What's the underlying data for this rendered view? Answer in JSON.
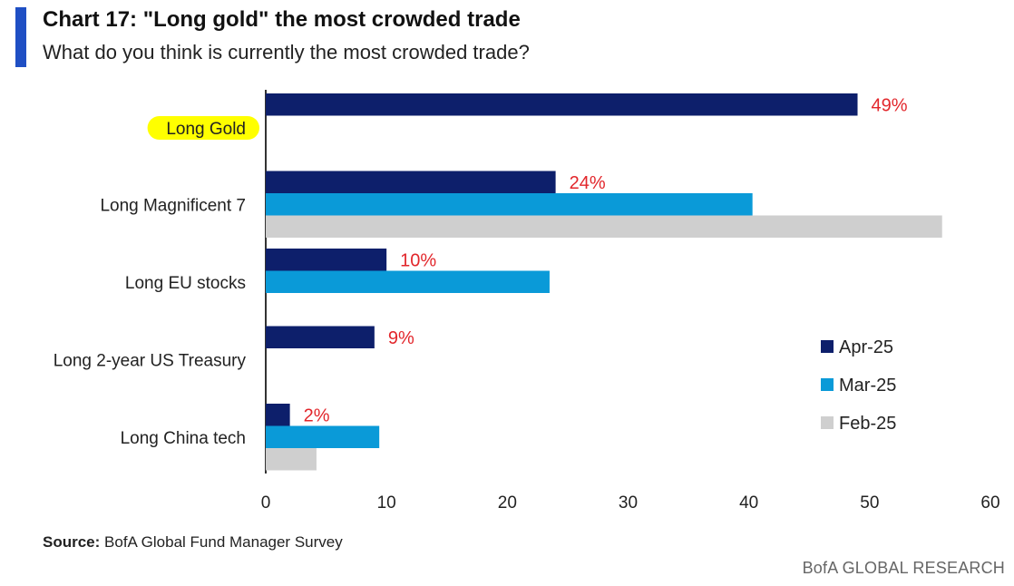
{
  "header": {
    "title": "Chart 17: \"Long gold\" the most crowded trade",
    "subtitle": "What do you think is currently the most crowded trade?",
    "accent_color": "#1f4fc4"
  },
  "chart_data": {
    "type": "bar",
    "orientation": "horizontal",
    "categories": [
      "Long Gold",
      "Long Magnificent 7",
      "Long EU stocks",
      "Long 2-year US Treasury",
      "Long China tech"
    ],
    "highlighted_category": "Long Gold",
    "highlight_color": "#ffff00",
    "series": [
      {
        "name": "Apr-25",
        "color": "#0d1f6b",
        "values": [
          49,
          24,
          10,
          9,
          2
        ]
      },
      {
        "name": "Mar-25",
        "color": "#0a9ad8",
        "values": [
          null,
          40.3,
          23.5,
          null,
          9.4
        ]
      },
      {
        "name": "Feb-25",
        "color": "#cfcfcf",
        "values": [
          null,
          56,
          null,
          null,
          4.2
        ]
      }
    ],
    "data_labels": [
      "49%",
      "24%",
      "10%",
      "9%",
      "2%"
    ],
    "data_label_color": "#e2262b",
    "xlim": [
      0,
      60
    ],
    "xticks": [
      0,
      10,
      20,
      30,
      40,
      50,
      60
    ],
    "grid": false,
    "legend_position": "right"
  },
  "footer": {
    "source_label": "Source:",
    "source_text": " BofA Global Fund Manager Survey",
    "brand": "BofA GLOBAL RESEARCH"
  }
}
